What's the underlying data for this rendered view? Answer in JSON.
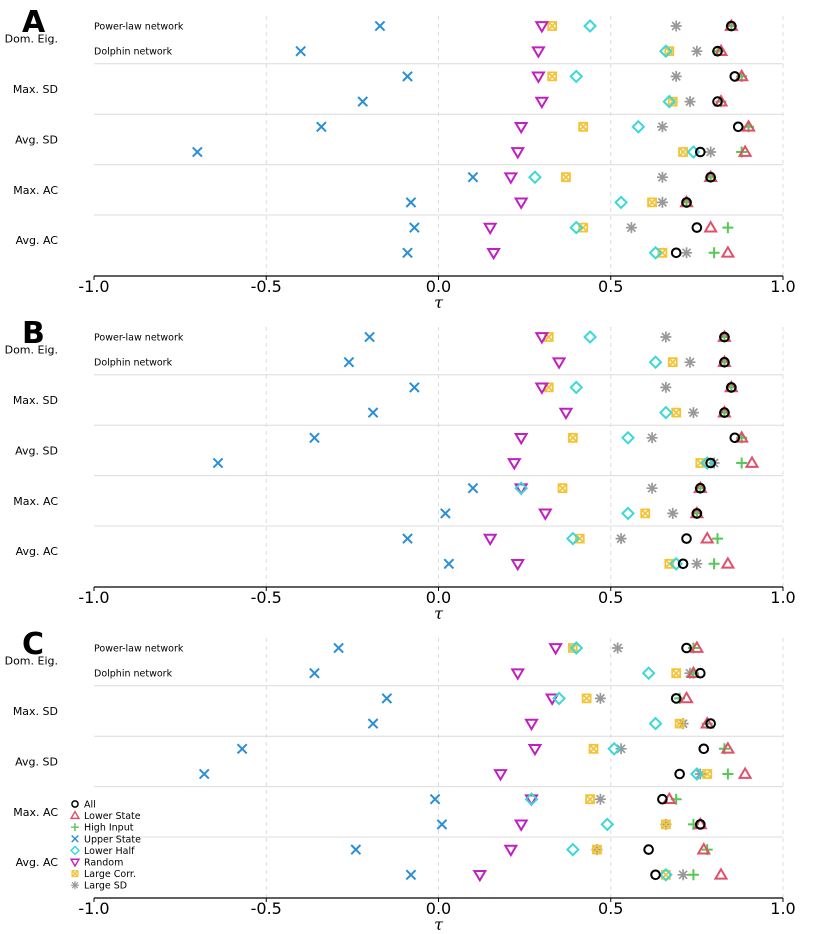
{
  "chart_data": {
    "type": "scatter",
    "xlabel": "τ",
    "xlim": [
      -1.0,
      1.0
    ],
    "xticks": [
      "-1.0",
      "-0.5",
      "0.0",
      "0.5",
      "1.0"
    ],
    "row_groups": [
      "Dom. Eig.",
      "Max. SD",
      "Avg. SD",
      "Max. AC",
      "Avg. AC"
    ],
    "networks": [
      "Power-law network",
      "Dolphin network"
    ],
    "series": [
      {
        "key": "all",
        "name": "All",
        "marker": "circle",
        "color": "#000000"
      },
      {
        "key": "lower_state",
        "name": "Lower State",
        "marker": "triangle-up",
        "color": "#e0506a"
      },
      {
        "key": "high_input",
        "name": "High Input",
        "marker": "plus",
        "color": "#55c855"
      },
      {
        "key": "upper_state",
        "name": "Upper State",
        "marker": "x",
        "color": "#2a8fd6"
      },
      {
        "key": "lower_half",
        "name": "Lower Half",
        "marker": "diamond",
        "color": "#3cd8d8"
      },
      {
        "key": "random",
        "name": "Random",
        "marker": "triangle-down",
        "color": "#c020c0"
      },
      {
        "key": "large_corr",
        "name": "Large Corr.",
        "marker": "square-x",
        "color": "#f2c43a"
      },
      {
        "key": "large_sd",
        "name": "Large SD",
        "marker": "asterisk",
        "color": "#999999"
      }
    ],
    "panels": [
      {
        "label": "A",
        "rows": [
          {
            "all": 0.85,
            "lower_state": 0.85,
            "high_input": 0.85,
            "upper_state": -0.17,
            "lower_half": 0.44,
            "random": 0.3,
            "large_corr": 0.33,
            "large_sd": 0.69
          },
          {
            "all": 0.81,
            "lower_state": 0.82,
            "high_input": 0.81,
            "upper_state": -0.4,
            "lower_half": 0.66,
            "random": 0.29,
            "large_corr": 0.67,
            "large_sd": 0.75
          },
          {
            "all": 0.86,
            "lower_state": 0.88,
            "high_input": 0.88,
            "upper_state": -0.09,
            "lower_half": 0.4,
            "random": 0.29,
            "large_corr": 0.33,
            "large_sd": 0.69
          },
          {
            "all": 0.81,
            "lower_state": 0.82,
            "high_input": 0.82,
            "upper_state": -0.22,
            "lower_half": 0.67,
            "random": 0.3,
            "large_corr": 0.68,
            "large_sd": 0.73
          },
          {
            "all": 0.87,
            "lower_state": 0.9,
            "high_input": 0.9,
            "upper_state": -0.34,
            "lower_half": 0.58,
            "random": 0.24,
            "large_corr": 0.42,
            "large_sd": 0.65
          },
          {
            "all": 0.76,
            "lower_state": 0.89,
            "high_input": 0.88,
            "upper_state": -0.7,
            "lower_half": 0.74,
            "random": 0.23,
            "large_corr": 0.71,
            "large_sd": 0.79
          },
          {
            "all": 0.79,
            "lower_state": 0.79,
            "high_input": 0.79,
            "upper_state": 0.1,
            "lower_half": 0.28,
            "random": 0.21,
            "large_corr": 0.37,
            "large_sd": 0.65
          },
          {
            "all": 0.72,
            "lower_state": 0.72,
            "high_input": 0.72,
            "upper_state": -0.08,
            "lower_half": 0.53,
            "random": 0.24,
            "large_corr": 0.62,
            "large_sd": 0.65
          },
          {
            "all": 0.75,
            "lower_state": 0.79,
            "high_input": 0.84,
            "upper_state": -0.07,
            "lower_half": 0.4,
            "random": 0.15,
            "large_corr": 0.42,
            "large_sd": 0.56
          },
          {
            "all": 0.69,
            "lower_state": 0.84,
            "high_input": 0.8,
            "upper_state": -0.09,
            "lower_half": 0.63,
            "random": 0.16,
            "large_corr": 0.65,
            "large_sd": 0.72
          }
        ]
      },
      {
        "label": "B",
        "rows": [
          {
            "all": 0.83,
            "lower_state": 0.83,
            "high_input": 0.83,
            "upper_state": -0.2,
            "lower_half": 0.44,
            "random": 0.3,
            "large_corr": 0.32,
            "large_sd": 0.66
          },
          {
            "all": 0.83,
            "lower_state": 0.83,
            "high_input": 0.83,
            "upper_state": -0.26,
            "lower_half": 0.63,
            "random": 0.35,
            "large_corr": 0.68,
            "large_sd": 0.73
          },
          {
            "all": 0.85,
            "lower_state": 0.85,
            "high_input": 0.85,
            "upper_state": -0.07,
            "lower_half": 0.4,
            "random": 0.3,
            "large_corr": 0.32,
            "large_sd": 0.66
          },
          {
            "all": 0.83,
            "lower_state": 0.83,
            "high_input": 0.83,
            "upper_state": -0.19,
            "lower_half": 0.66,
            "random": 0.37,
            "large_corr": 0.69,
            "large_sd": 0.74
          },
          {
            "all": 0.86,
            "lower_state": 0.88,
            "high_input": 0.88,
            "upper_state": -0.36,
            "lower_half": 0.55,
            "random": 0.24,
            "large_corr": 0.39,
            "large_sd": 0.62
          },
          {
            "all": 0.79,
            "lower_state": 0.91,
            "high_input": 0.88,
            "upper_state": -0.64,
            "lower_half": 0.78,
            "random": 0.22,
            "large_corr": 0.76,
            "large_sd": 0.8
          },
          {
            "all": 0.76,
            "lower_state": 0.76,
            "high_input": 0.76,
            "upper_state": 0.1,
            "lower_half": 0.24,
            "random": 0.24,
            "large_corr": 0.36,
            "large_sd": 0.62
          },
          {
            "all": 0.75,
            "lower_state": 0.75,
            "high_input": 0.75,
            "upper_state": 0.02,
            "lower_half": 0.55,
            "random": 0.31,
            "large_corr": 0.6,
            "large_sd": 0.68
          },
          {
            "all": 0.72,
            "lower_state": 0.78,
            "high_input": 0.81,
            "upper_state": -0.09,
            "lower_half": 0.39,
            "random": 0.15,
            "large_corr": 0.41,
            "large_sd": 0.53
          },
          {
            "all": 0.71,
            "lower_state": 0.84,
            "high_input": 0.8,
            "upper_state": 0.03,
            "lower_half": 0.69,
            "random": 0.23,
            "large_corr": 0.67,
            "large_sd": 0.75
          }
        ]
      },
      {
        "label": "C",
        "rows": [
          {
            "all": 0.72,
            "lower_state": 0.75,
            "high_input": 0.74,
            "upper_state": -0.29,
            "lower_half": 0.4,
            "random": 0.34,
            "large_corr": 0.39,
            "large_sd": 0.52
          },
          {
            "all": 0.76,
            "lower_state": 0.74,
            "high_input": 0.74,
            "upper_state": -0.36,
            "lower_half": 0.61,
            "random": 0.23,
            "large_corr": 0.69,
            "large_sd": 0.73
          },
          {
            "all": 0.69,
            "lower_state": 0.72,
            "high_input": 0.7,
            "upper_state": -0.15,
            "lower_half": 0.35,
            "random": 0.33,
            "large_corr": 0.43,
            "large_sd": 0.47
          },
          {
            "all": 0.79,
            "lower_state": 0.78,
            "high_input": 0.78,
            "upper_state": -0.19,
            "lower_half": 0.63,
            "random": 0.27,
            "large_corr": 0.7,
            "large_sd": 0.71
          },
          {
            "all": 0.77,
            "lower_state": 0.84,
            "high_input": 0.83,
            "upper_state": -0.57,
            "lower_half": 0.51,
            "random": 0.28,
            "large_corr": 0.45,
            "large_sd": 0.53
          },
          {
            "all": 0.7,
            "lower_state": 0.89,
            "high_input": 0.84,
            "upper_state": -0.68,
            "lower_half": 0.75,
            "random": 0.18,
            "large_corr": 0.78,
            "large_sd": 0.76
          },
          {
            "all": 0.65,
            "lower_state": 0.67,
            "high_input": 0.69,
            "upper_state": -0.01,
            "lower_half": 0.27,
            "random": 0.27,
            "large_corr": 0.44,
            "large_sd": 0.47
          },
          {
            "all": 0.76,
            "lower_state": 0.76,
            "high_input": 0.74,
            "upper_state": 0.01,
            "lower_half": 0.49,
            "random": 0.24,
            "large_corr": 0.66,
            "large_sd": 0.66
          },
          {
            "all": 0.61,
            "lower_state": 0.77,
            "high_input": 0.78,
            "upper_state": -0.24,
            "lower_half": 0.39,
            "random": 0.21,
            "large_corr": 0.46,
            "large_sd": 0.46
          },
          {
            "all": 0.63,
            "lower_state": 0.82,
            "high_input": 0.74,
            "upper_state": -0.08,
            "lower_half": 0.66,
            "random": 0.12,
            "large_corr": 0.66,
            "large_sd": 0.71
          }
        ]
      }
    ],
    "grid": "vertical dashed at x ticks, horizontal separators between row groups",
    "legend": {
      "placement": "bottom-left of panel C"
    }
  }
}
